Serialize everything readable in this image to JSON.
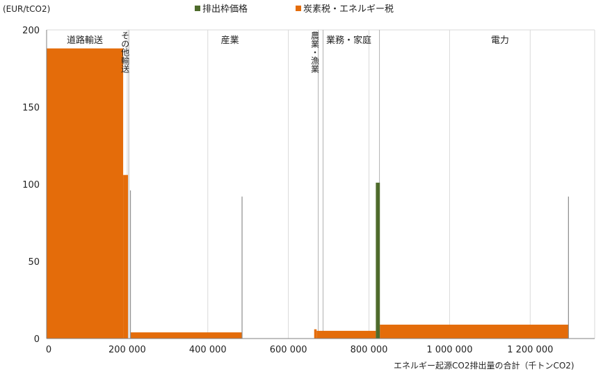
{
  "legend": {
    "items": [
      {
        "label": "排出枠価格",
        "color": "#4e6b2c"
      },
      {
        "label": "炭素税・エネルギー税",
        "color": "#e46c0a"
      }
    ]
  },
  "axis": {
    "y_unit": "(EUR/tCO2)",
    "x_title": "エネルギー起源CO2排出量の合計（千トンCO2)"
  },
  "chart_data": {
    "type": "bar",
    "x_unit": "千トンCO2",
    "y_unit": "EUR/tCO2",
    "xlim": [
      0,
      1360000
    ],
    "ylim": [
      0,
      200
    ],
    "x_ticks": [
      "0",
      "200 000",
      "400 000",
      "600 000",
      "800 000",
      "1 000 000",
      "1 200 000"
    ],
    "x_tick_values": [
      0,
      200000,
      400000,
      600000,
      800000,
      1000000,
      1200000
    ],
    "y_ticks": [
      "0",
      "50",
      "100",
      "150",
      "200"
    ],
    "y_tick_values": [
      0,
      50,
      100,
      150,
      200
    ],
    "grid": "vertical",
    "legend_position": "top",
    "sector_labels": [
      {
        "label": "道路輸送",
        "x": 95000,
        "vertical": false
      },
      {
        "label": "その他輸送",
        "x": 203000,
        "vertical": true
      },
      {
        "label": "産業",
        "x": 455000,
        "vertical": false
      },
      {
        "label": "農業・漁業",
        "x": 674000,
        "vertical": true
      },
      {
        "label": "業務・家庭",
        "x": 750000,
        "vertical": false
      },
      {
        "label": "電力",
        "x": 1125000,
        "vertical": false
      }
    ],
    "sector_dividers": [
      204000,
      674000,
      686000,
      826000
    ],
    "series": [
      {
        "name": "炭素税・エネルギー税",
        "color": "#e46c0a",
        "blocks": [
          {
            "x0": 0,
            "x1": 190000,
            "y": 188
          },
          {
            "x0": 190000,
            "x1": 202000,
            "y": 106
          },
          {
            "x0": 208000,
            "x1": 485000,
            "y": 4
          },
          {
            "x0": 664000,
            "x1": 670000,
            "y": 6
          },
          {
            "x0": 670000,
            "x1": 817000,
            "y": 5
          },
          {
            "x0": 827000,
            "x1": 1295000,
            "y": 9
          }
        ]
      },
      {
        "name": "排出枠価格",
        "color": "#4e6b2c",
        "blocks": [
          {
            "x0": 817000,
            "x1": 827000,
            "y": 101
          }
        ]
      },
      {
        "name": "",
        "color": "#8c8c8c",
        "blocks": [
          {
            "x0": 207000,
            "x1": 209000,
            "y": 96
          },
          {
            "x0": 484000,
            "x1": 486000,
            "y": 92
          },
          {
            "x0": 1294000,
            "x1": 1296000,
            "y": 92
          }
        ]
      }
    ]
  }
}
